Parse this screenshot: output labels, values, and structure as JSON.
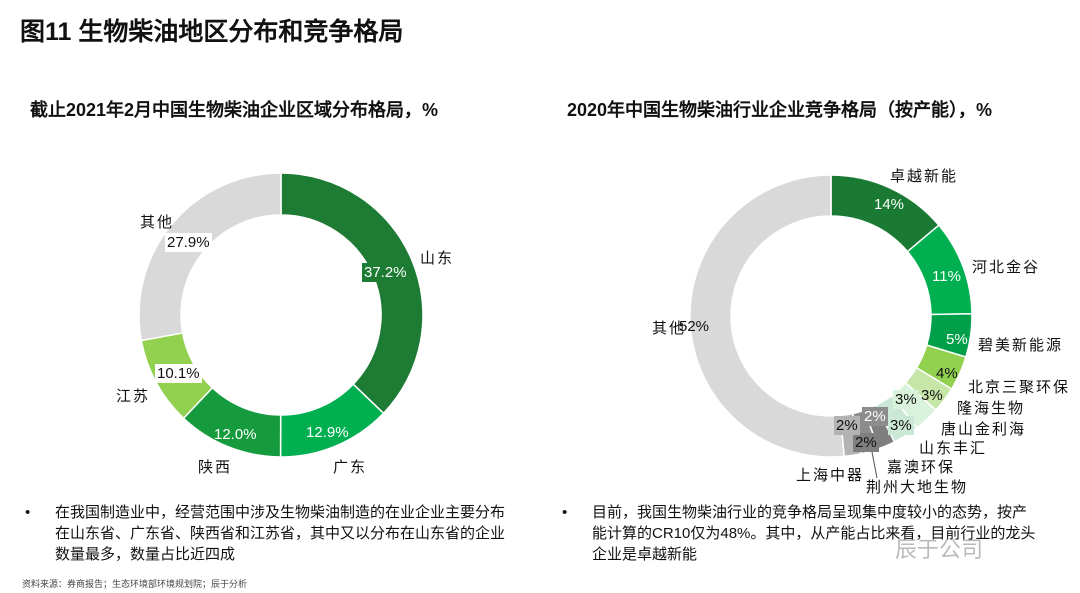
{
  "title": "图11  生物柴油地区分布和竞争格局",
  "chart_data": [
    {
      "type": "pie",
      "donut": true,
      "title": "截止2021年2月中国生物柴油企业区域分布格局，%",
      "categories": [
        "山东",
        "广东",
        "陕西",
        "江苏",
        "其他"
      ],
      "values": [
        37.2,
        12.9,
        12.0,
        10.1,
        27.9
      ],
      "labels": [
        "37.2%",
        "12.9%",
        "12.0%",
        "10.1%",
        "27.9%"
      ],
      "colors": [
        "#1e7b34",
        "#00b050",
        "#159a3e",
        "#92d050",
        "#d9d9d9"
      ]
    },
    {
      "type": "pie",
      "donut": true,
      "title": "2020年中国生物柴油行业企业竞争格局（按产能），%",
      "categories": [
        "卓越新能",
        "河北金谷",
        "碧美新能源",
        "北京三聚环保",
        "隆海生物",
        "唐山金利海",
        "山东丰汇",
        "嘉澳环保",
        "荆州大地生物",
        "上海中器",
        "其他"
      ],
      "values": [
        14,
        11,
        5,
        4,
        3,
        3,
        3,
        2,
        2,
        2,
        52
      ],
      "labels": [
        "14%",
        "11%",
        "5%",
        "4%",
        "3%",
        "3%",
        "3%",
        "2%",
        "2%",
        "2%",
        "52%"
      ],
      "colors": [
        "#1a7a34",
        "#00b050",
        "#00a04a",
        "#92d050",
        "#c5e6a6",
        "#d9f2dc",
        "#cbe8d6",
        "#7f7f7f",
        "#8c8c8c",
        "#b3b3b3",
        "#d9d9d9"
      ]
    }
  ],
  "notes": {
    "left": "在我国制造业中，经营范围中涉及生物柴油制造的在业企业主要分布在山东省、广东省、陕西省和江苏省，其中又以分布在山东省的企业数量最多，数量占比近四成",
    "right": "目前，我国生物柴油行业的竞争格局呈现集中度较小的态势，按产能计算的CR10仅为48%。其中，从产能占比来看，目前行业的龙头企业是卓越新能"
  },
  "bullet_symbol": "•",
  "source": "资料来源：券商报告；生态环境部环境规划院；辰于分析",
  "watermark": "辰于公司"
}
